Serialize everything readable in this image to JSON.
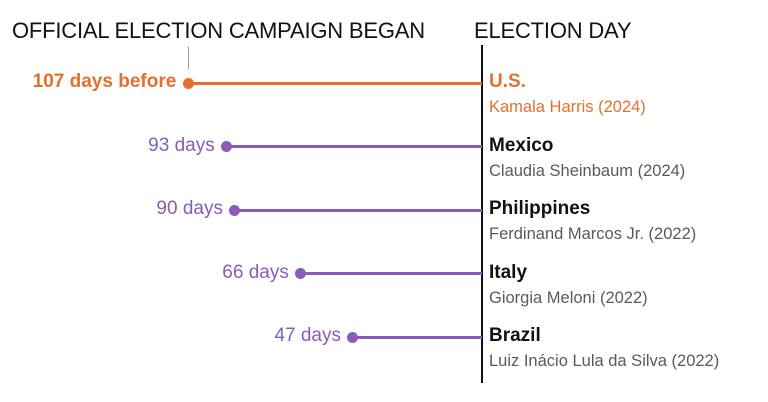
{
  "header": {
    "campaign_label": "OFFICIAL ELECTION CAMPAIGN BEGAN",
    "election_day_label": "ELECTION DAY"
  },
  "colors": {
    "highlight": "#e0712f",
    "series": "#8a5cb8",
    "axis": "#121212",
    "subtext": "#5a5a5a"
  },
  "chart_data": {
    "type": "bar",
    "categories": [
      "U.S.",
      "Mexico",
      "Philippines",
      "Italy",
      "Brazil"
    ],
    "leaders": [
      "Kamala Harris (2024)",
      "Claudia Sheinbaum (2024)",
      "Ferdinand Marcos Jr. (2022)",
      "Giorgia Meloni (2022)",
      "Luiz Inácio Lula da Silva (2022)"
    ],
    "values": [
      107,
      93,
      90,
      66,
      47
    ],
    "value_labels": [
      "107 days before",
      "93 days",
      "90 days",
      "66 days",
      "47 days"
    ],
    "highlight_index": 0,
    "orientation": "horizontal-dot-lines",
    "title": "",
    "xlabel": "",
    "ylabel": ""
  }
}
